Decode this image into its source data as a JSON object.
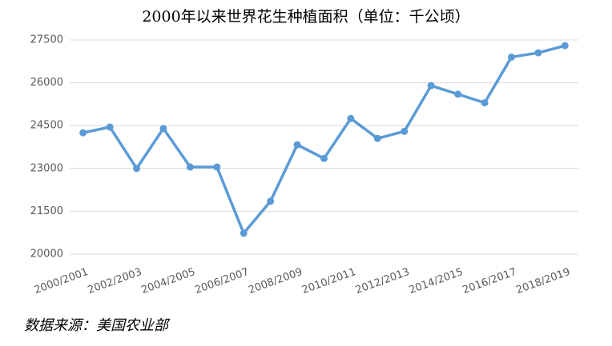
{
  "chart_data": {
    "type": "line",
    "title": "2000年以来世界花生种植面积（单位：千公顷）",
    "categories": [
      "2000/2001",
      null,
      "2002/2003",
      null,
      "2004/2005",
      null,
      "2006/2007",
      null,
      "2008/2009",
      null,
      "2010/2011",
      null,
      "2012/2013",
      null,
      "2014/2015",
      null,
      "2016/2017",
      null,
      "2018/2019"
    ],
    "series": [
      {
        "name": "世界花生种植面积",
        "color": "#5b9bd5",
        "values": [
          24250,
          24450,
          23000,
          24400,
          23050,
          23050,
          20730,
          21850,
          23830,
          23350,
          24750,
          24050,
          24300,
          25900,
          25600,
          25300,
          26900,
          27050,
          27300
        ]
      }
    ],
    "ylim": [
      20000,
      27500
    ],
    "yticks": [
      20000,
      21500,
      23000,
      24500,
      26000,
      27500
    ],
    "grid": true,
    "source": "数据来源：美国农业部"
  }
}
